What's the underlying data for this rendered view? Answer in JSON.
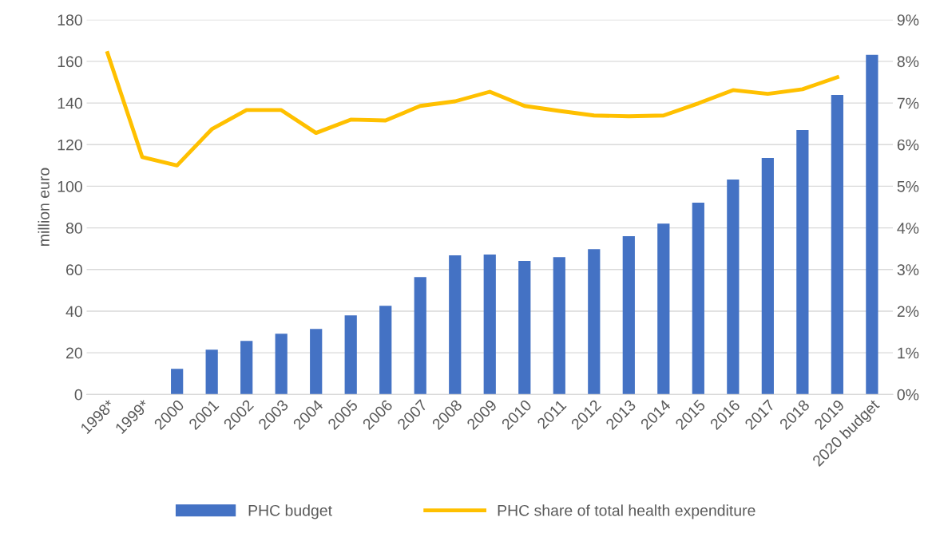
{
  "chart_data": {
    "type": "bar",
    "ylabel": "million euro",
    "categories": [
      "1998*",
      "1999*",
      "2000",
      "2001",
      "2002",
      "2003",
      "2004",
      "2005",
      "2006",
      "2007",
      "2008",
      "2009",
      "2010",
      "2011",
      "2012",
      "2013",
      "2014",
      "2015",
      "2016",
      "2017",
      "2018",
      "2019",
      "2020 budget"
    ],
    "series": [
      {
        "name": "PHC budget",
        "color": "#4472c4",
        "values": [
          null,
          null,
          12.3,
          21.5,
          25.7,
          29.2,
          31.5,
          38,
          42.6,
          56.4,
          66.8,
          67.2,
          64.1,
          66,
          69.8,
          76,
          82.1,
          92.1,
          103.2,
          113.6,
          127,
          143.9,
          163.1
        ]
      },
      {
        "name": "PHC share of total health expenditure",
        "type": "line",
        "axis": "y2",
        "color": "#ffc000",
        "values": [
          8.2,
          5.7,
          5.5,
          6.37,
          6.83,
          6.83,
          6.28,
          6.6,
          6.58,
          6.93,
          7.04,
          7.27,
          6.93,
          6.81,
          6.7,
          6.68,
          6.7,
          6.99,
          7.31,
          7.22,
          7.33,
          7.62,
          null
        ]
      }
    ],
    "ylim": [
      0,
      180
    ],
    "yticks": [
      0,
      20,
      40,
      60,
      80,
      100,
      120,
      140,
      160,
      180
    ],
    "y2lim": [
      0,
      9
    ],
    "y2ticks": [
      {
        "value": 0,
        "label": "0%"
      },
      {
        "value": 1,
        "label": "1%"
      },
      {
        "value": 2,
        "label": "2%"
      },
      {
        "value": 3,
        "label": "3%"
      },
      {
        "value": 4,
        "label": "4%"
      },
      {
        "value": 5,
        "label": "5%"
      },
      {
        "value": 6,
        "label": "6%"
      },
      {
        "value": 7,
        "label": "7%"
      },
      {
        "value": 8,
        "label": "8%"
      },
      {
        "value": 9,
        "label": "9%"
      }
    ],
    "grid": "y",
    "legend": "bottom",
    "marker": "none",
    "line_style": "solid"
  }
}
